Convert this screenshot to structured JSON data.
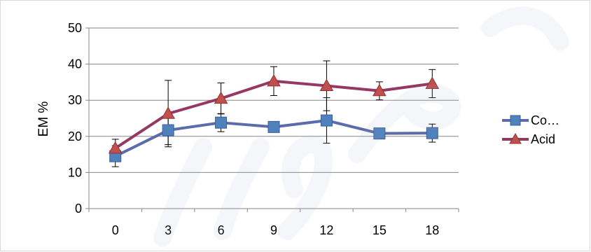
{
  "chart_data": {
    "type": "line",
    "categories": [
      "0",
      "3",
      "6",
      "9",
      "12",
      "15",
      "18"
    ],
    "ylabel": "EM  %",
    "xlabel": "",
    "title": "",
    "ylim": [
      0,
      50
    ],
    "yticks": [
      0,
      10,
      20,
      30,
      40,
      50
    ],
    "grid": "horizontal",
    "legend_position": "right",
    "series": [
      {
        "name": "Co…",
        "color": "#4f81bd",
        "line_color": "#5b6cab",
        "marker": "square",
        "values": [
          14.5,
          21.7,
          23.8,
          22.6,
          24.4,
          20.8,
          20.9
        ],
        "error": [
          2.9,
          4.0,
          2.5,
          1.0,
          6.3,
          0.8,
          2.5
        ]
      },
      {
        "name": "Acid",
        "color": "#c0504d",
        "line_color": "#953863",
        "marker": "triangle",
        "values": [
          16.7,
          26.3,
          30.5,
          35.3,
          34.0,
          32.6,
          34.6
        ],
        "error": [
          2.5,
          9.2,
          4.3,
          4.0,
          6.9,
          2.5,
          3.9
        ]
      }
    ]
  }
}
